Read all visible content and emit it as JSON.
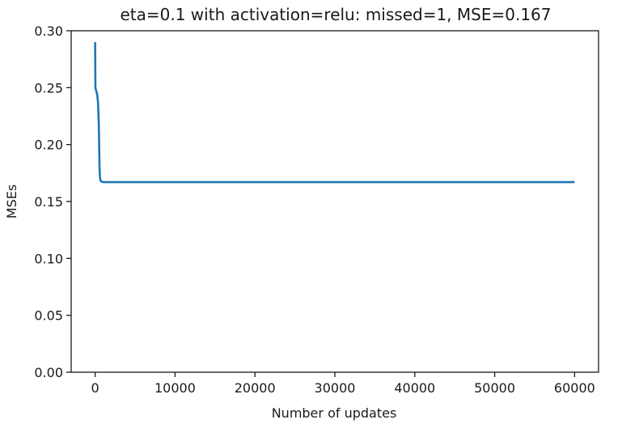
{
  "chart_data": {
    "type": "line",
    "title": "eta=0.1 with activation=relu: missed=1, MSE=0.167",
    "xlabel": "Number of updates",
    "ylabel": "MSEs",
    "xlim": [
      -3000,
      63000
    ],
    "ylim": [
      0.0,
      0.3
    ],
    "xticks": [
      0,
      10000,
      20000,
      30000,
      40000,
      50000,
      60000
    ],
    "xtick_labels": [
      "0",
      "10000",
      "20000",
      "30000",
      "40000",
      "50000",
      "60000"
    ],
    "yticks": [
      0.0,
      0.05,
      0.1,
      0.15,
      0.2,
      0.25,
      0.3
    ],
    "ytick_labels": [
      "0.00",
      "0.05",
      "0.10",
      "0.15",
      "0.20",
      "0.25",
      "0.30"
    ],
    "grid": false,
    "series_color": "#1f77b4",
    "series": [
      {
        "x": [
          0,
          30,
          60,
          150,
          250,
          350,
          450,
          500,
          550,
          600,
          650,
          700,
          800,
          1000,
          1500,
          3000,
          10000,
          20000,
          30000,
          40000,
          50000,
          60000
        ],
        "values": [
          0.29,
          0.251,
          0.249,
          0.247,
          0.244,
          0.238,
          0.22,
          0.2,
          0.18,
          0.172,
          0.169,
          0.168,
          0.1675,
          0.167,
          0.167,
          0.167,
          0.167,
          0.167,
          0.167,
          0.167,
          0.167,
          0.167
        ]
      }
    ]
  }
}
